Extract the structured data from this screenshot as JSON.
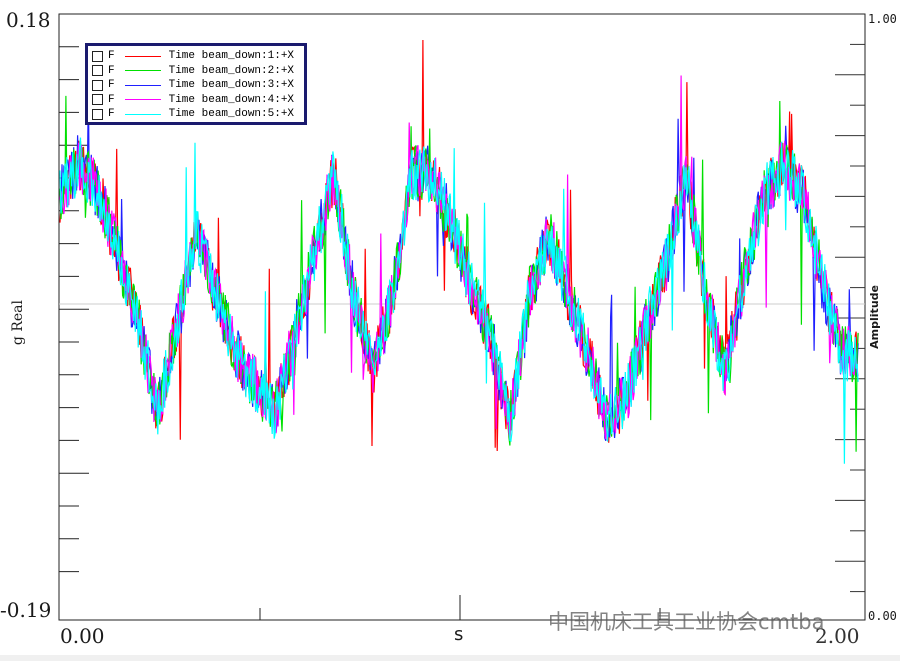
{
  "chart_data": {
    "type": "line",
    "title": "",
    "xlabel": "s",
    "ylabel": "g Real",
    "right_axis_label": "Amplitude",
    "xlim": [
      0,
      2.05
    ],
    "ylim": [
      -0.19,
      0.18
    ],
    "right_ylim": [
      0.0,
      1.0
    ],
    "x_tick_labels": [
      "0.00",
      "2.00"
    ],
    "y_tick_labels": [
      "0.18",
      "-0.19"
    ],
    "right_tick_labels": [
      "1.00",
      "0.00"
    ],
    "grid": false,
    "legend_placement": "top-left",
    "x": [
      0,
      0.05,
      0.1,
      0.15,
      0.2,
      0.25,
      0.3,
      0.35,
      0.4,
      0.45,
      0.5,
      0.55,
      0.6,
      0.65,
      0.7,
      0.75,
      0.8,
      0.85,
      0.9,
      0.95,
      1.0,
      1.05,
      1.1,
      1.15,
      1.2,
      1.25,
      1.3,
      1.35,
      1.4,
      1.45,
      1.5,
      1.55,
      1.6,
      1.65,
      1.7,
      1.75,
      1.8,
      1.85,
      1.9,
      1.95,
      2.0
    ],
    "approx_mean_values": [
      0.068,
      0.087,
      0.068,
      0.031,
      -0.012,
      -0.068,
      -0.012,
      0.043,
      0.006,
      -0.031,
      -0.05,
      -0.068,
      -0.019,
      0.031,
      0.081,
      0.006,
      -0.043,
      0.006,
      0.081,
      0.081,
      0.05,
      0.012,
      -0.019,
      -0.074,
      0.006,
      0.043,
      0.006,
      -0.031,
      -0.074,
      -0.056,
      -0.012,
      0.025,
      0.081,
      0.006,
      -0.043,
      0.019,
      0.068,
      0.087,
      0.068,
      0.012,
      -0.031
    ],
    "series": [
      {
        "name": "Time beam_down:1:+X",
        "color": "#ff0000"
      },
      {
        "name": "Time beam_down:2:+X",
        "color": "#00e000"
      },
      {
        "name": "Time beam_down:3:+X",
        "color": "#2020ff"
      },
      {
        "name": "Time beam_down:4:+X",
        "color": "#ff00ff"
      },
      {
        "name": "Time beam_down:5:+X",
        "color": "#00ffff"
      }
    ]
  },
  "legend": {
    "prefix": "F"
  },
  "watermark": "中国机床工具工业协会cmtba"
}
